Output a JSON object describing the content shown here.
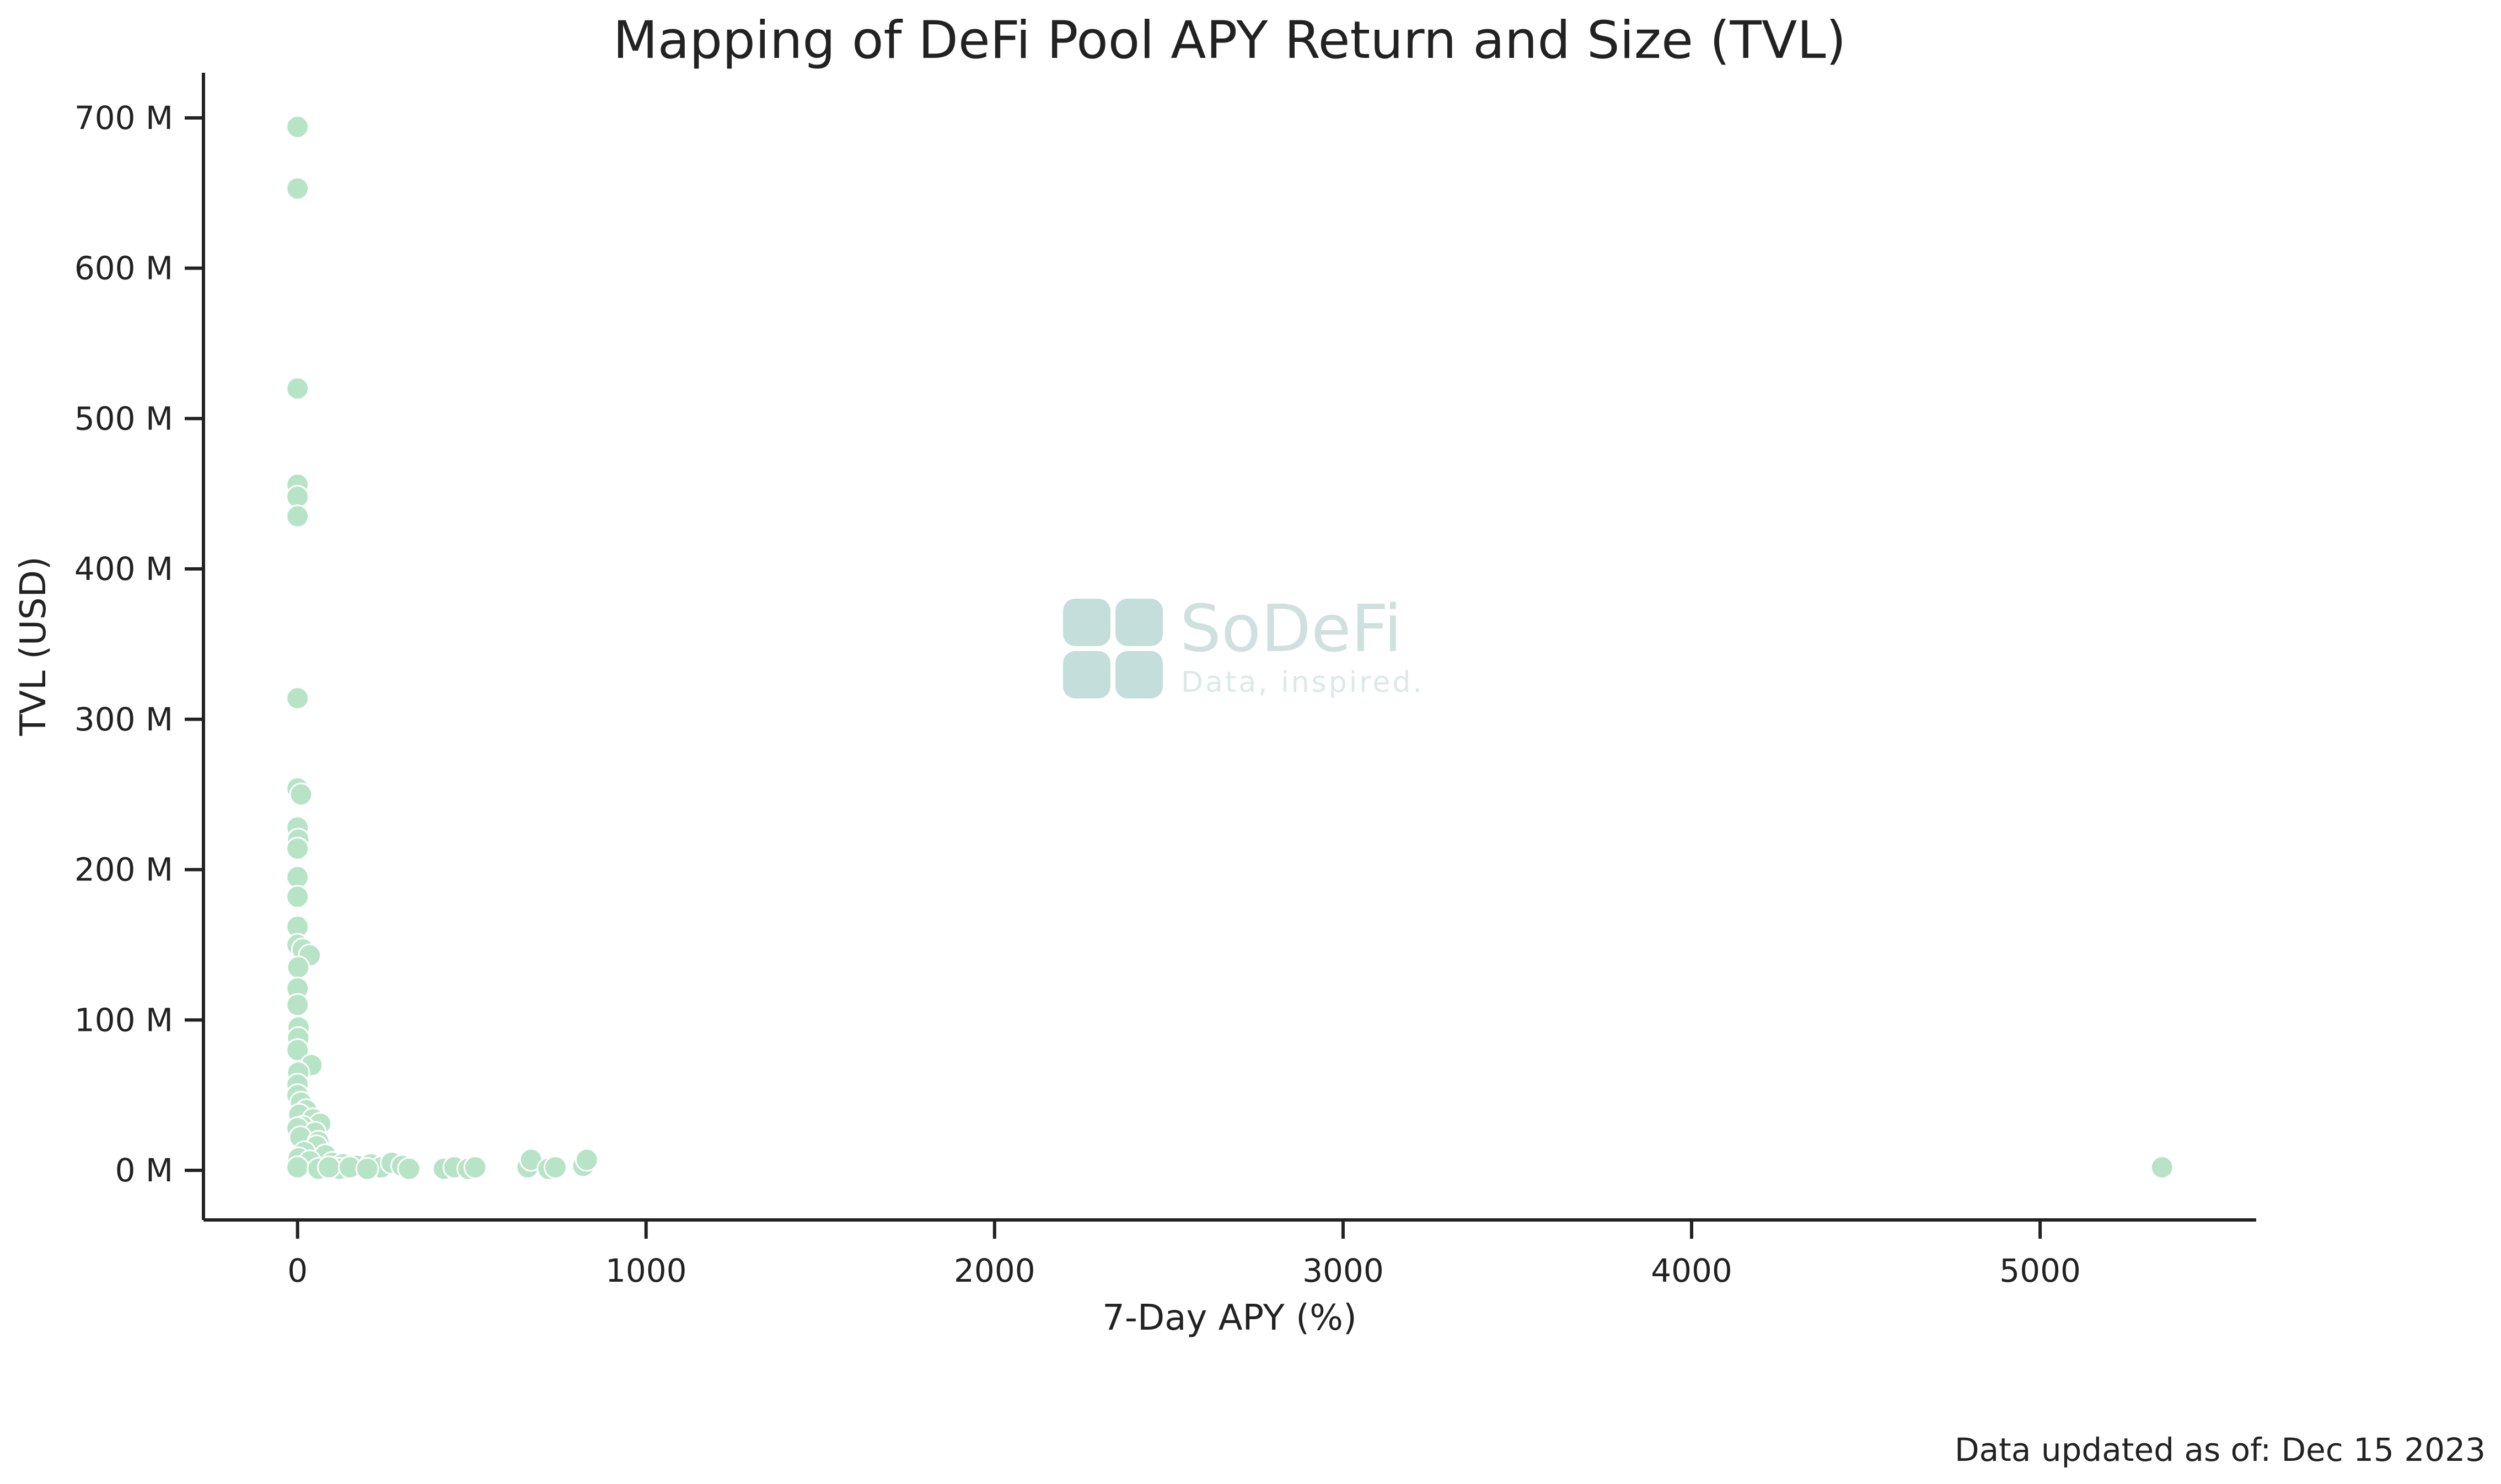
{
  "chart_data": {
    "type": "scatter",
    "title": "Mapping of DeFi Pool APY Return and Size (TVL)",
    "xlabel": "7-Day APY (%)",
    "ylabel": "TVL (USD)",
    "xlim": [
      -270,
      5620
    ],
    "ylim": [
      -33,
      730
    ],
    "y_unit": "M",
    "x_ticks": [
      0,
      1000,
      2000,
      3000,
      4000,
      5000
    ],
    "x_tick_labels": [
      "0",
      "1000",
      "2000",
      "3000",
      "4000",
      "5000"
    ],
    "y_ticks": [
      0,
      100,
      200,
      300,
      400,
      500,
      600,
      700
    ],
    "y_tick_labels": [
      "0 M",
      "100 M",
      "200 M",
      "300 M",
      "400 M",
      "500 M",
      "600 M",
      "700 M"
    ],
    "grid": false,
    "marker_color": "#b7e4c7",
    "points": [
      {
        "x": 0,
        "y": 694
      },
      {
        "x": 0,
        "y": 653
      },
      {
        "x": 0,
        "y": 520
      },
      {
        "x": 0,
        "y": 456
      },
      {
        "x": 0,
        "y": 448
      },
      {
        "x": 0,
        "y": 435
      },
      {
        "x": 0,
        "y": 314
      },
      {
        "x": 0,
        "y": 254
      },
      {
        "x": 10,
        "y": 250
      },
      {
        "x": 0,
        "y": 228
      },
      {
        "x": 2,
        "y": 220
      },
      {
        "x": 0,
        "y": 214
      },
      {
        "x": 0,
        "y": 195
      },
      {
        "x": 0,
        "y": 182
      },
      {
        "x": 0,
        "y": 162
      },
      {
        "x": 0,
        "y": 150
      },
      {
        "x": 15,
        "y": 147
      },
      {
        "x": 35,
        "y": 143
      },
      {
        "x": 2,
        "y": 135
      },
      {
        "x": 0,
        "y": 121
      },
      {
        "x": 0,
        "y": 110
      },
      {
        "x": 3,
        "y": 95
      },
      {
        "x": 2,
        "y": 88
      },
      {
        "x": 0,
        "y": 80
      },
      {
        "x": 40,
        "y": 70
      },
      {
        "x": 2,
        "y": 65
      },
      {
        "x": 0,
        "y": 57
      },
      {
        "x": 0,
        "y": 50
      },
      {
        "x": 10,
        "y": 45
      },
      {
        "x": 25,
        "y": 40
      },
      {
        "x": 5,
        "y": 37
      },
      {
        "x": 45,
        "y": 34
      },
      {
        "x": 65,
        "y": 31
      },
      {
        "x": 15,
        "y": 29
      },
      {
        "x": 0,
        "y": 28
      },
      {
        "x": 50,
        "y": 25
      },
      {
        "x": 8,
        "y": 22
      },
      {
        "x": 60,
        "y": 19
      },
      {
        "x": 55,
        "y": 16
      },
      {
        "x": 20,
        "y": 12
      },
      {
        "x": 80,
        "y": 10
      },
      {
        "x": 3,
        "y": 8
      },
      {
        "x": 35,
        "y": 6
      },
      {
        "x": 100,
        "y": 5
      },
      {
        "x": 130,
        "y": 4
      },
      {
        "x": 170,
        "y": 3
      },
      {
        "x": 210,
        "y": 4
      },
      {
        "x": 240,
        "y": 2
      },
      {
        "x": 270,
        "y": 5
      },
      {
        "x": 300,
        "y": 3
      },
      {
        "x": 320,
        "y": 1
      },
      {
        "x": 120,
        "y": 1
      },
      {
        "x": 0,
        "y": 2
      },
      {
        "x": 60,
        "y": 1
      },
      {
        "x": 90,
        "y": 2
      },
      {
        "x": 150,
        "y": 2
      },
      {
        "x": 200,
        "y": 1
      },
      {
        "x": 420,
        "y": 1
      },
      {
        "x": 450,
        "y": 2
      },
      {
        "x": 490,
        "y": 1
      },
      {
        "x": 510,
        "y": 2
      },
      {
        "x": 660,
        "y": 2
      },
      {
        "x": 670,
        "y": 7
      },
      {
        "x": 720,
        "y": 1
      },
      {
        "x": 740,
        "y": 2
      },
      {
        "x": 820,
        "y": 3
      },
      {
        "x": 830,
        "y": 7
      },
      {
        "x": 5350,
        "y": 2
      }
    ]
  },
  "watermark": {
    "name": "SoDeFi",
    "tagline": "Data, inspired.",
    "logo_color": "#c4dedb"
  },
  "footnote": "Data updated as of: Dec 15 2023"
}
